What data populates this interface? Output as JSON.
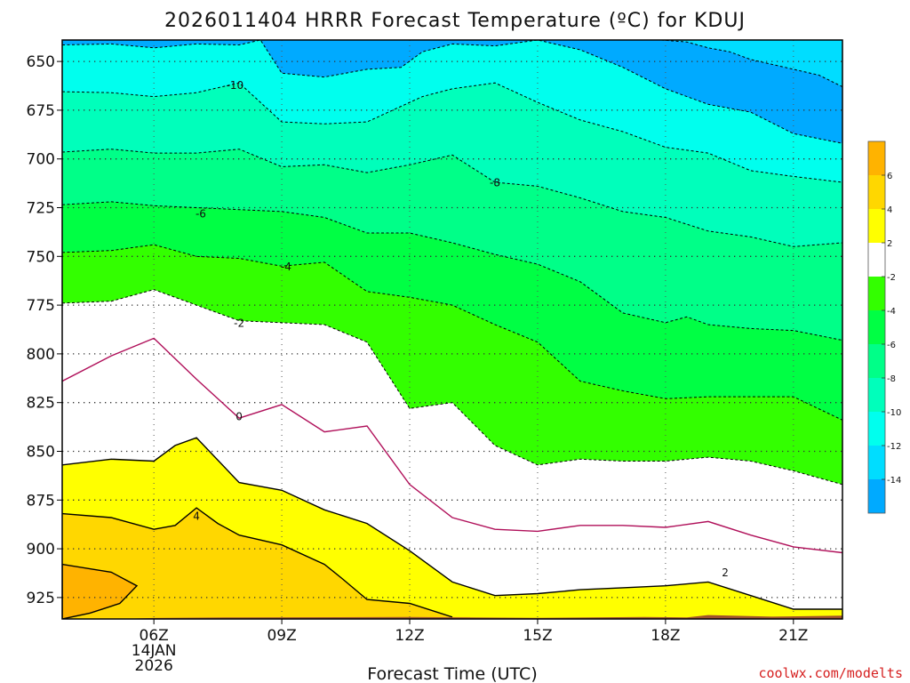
{
  "chart_data": {
    "type": "heatmap",
    "title": "2026011404 HRRR Forecast Temperature (ºC) for KDUJ",
    "xlabel": "Forecast Time (UTC)",
    "ylabel": "",
    "credit": "coolwx.com/modelts",
    "x_units": "forecast hour from 04Z",
    "xlim": [
      -0.15,
      18.15
    ],
    "x_ticks": [
      {
        "hour": 2,
        "label": "06Z",
        "sub1": "14JAN",
        "sub2": "2026"
      },
      {
        "hour": 5,
        "label": "09Z"
      },
      {
        "hour": 8,
        "label": "12Z"
      },
      {
        "hour": 11,
        "label": "15Z"
      },
      {
        "hour": 14,
        "label": "18Z"
      },
      {
        "hour": 17,
        "label": "21Z"
      }
    ],
    "y_units": "pressure (hPa)",
    "ylim": [
      936,
      639
    ],
    "y_ticks": [
      650,
      675,
      700,
      725,
      750,
      775,
      800,
      825,
      850,
      875,
      900,
      925
    ],
    "surface_pressure": [
      [
        -0.15,
        936.8
      ],
      [
        2,
        935.5
      ],
      [
        4,
        935.2
      ],
      [
        8,
        935
      ],
      [
        11,
        935.4
      ],
      [
        13.5,
        935
      ],
      [
        14.5,
        935.2
      ],
      [
        15,
        934
      ],
      [
        16.5,
        934.8
      ],
      [
        18.15,
        934.3
      ]
    ],
    "contour_interval": 2,
    "isotherms": [
      {
        "value": -14,
        "label": "",
        "dash": true,
        "points": [
          [
            13.9,
            639
          ],
          [
            14.5,
            640
          ],
          [
            15,
            643
          ],
          [
            15.5,
            645
          ],
          [
            16,
            649
          ],
          [
            16.8,
            653
          ],
          [
            17.6,
            657
          ],
          [
            18.15,
            663
          ]
        ]
      },
      {
        "value": -12,
        "label": "",
        "dash": true,
        "points": [
          [
            -0.15,
            641.5
          ],
          [
            1,
            641
          ],
          [
            2,
            643
          ],
          [
            3,
            641
          ],
          [
            4,
            641.5
          ],
          [
            4.5,
            639
          ],
          [
            5,
            656
          ],
          [
            6,
            658
          ],
          [
            7,
            654
          ],
          [
            7.8,
            653
          ],
          [
            8.3,
            645
          ],
          [
            9,
            641
          ],
          [
            10,
            642
          ],
          [
            11,
            639
          ],
          [
            12,
            644
          ],
          [
            13,
            653
          ],
          [
            14,
            664
          ],
          [
            15,
            672
          ],
          [
            16,
            676
          ],
          [
            17,
            687
          ],
          [
            18.15,
            692
          ]
        ]
      },
      {
        "value": -10,
        "label": "-10",
        "lx": 3.9,
        "ly": 662,
        "dash": true,
        "points": [
          [
            -0.15,
            665.5
          ],
          [
            1,
            666
          ],
          [
            2,
            668
          ],
          [
            3,
            666
          ],
          [
            4,
            661
          ],
          [
            5,
            681
          ],
          [
            6,
            682
          ],
          [
            7,
            681
          ],
          [
            7.8,
            673
          ],
          [
            8.3,
            668
          ],
          [
            9,
            664
          ],
          [
            10,
            661
          ],
          [
            11,
            671
          ],
          [
            12,
            680
          ],
          [
            13,
            686
          ],
          [
            14,
            694
          ],
          [
            15,
            697
          ],
          [
            16,
            706
          ],
          [
            17,
            709
          ],
          [
            18.15,
            712
          ]
        ]
      },
      {
        "value": -8,
        "label": "-8",
        "lx": 10,
        "ly": 712,
        "dash": true,
        "points": [
          [
            -0.15,
            696.5
          ],
          [
            1,
            695
          ],
          [
            2,
            697
          ],
          [
            3,
            697
          ],
          [
            4,
            695
          ],
          [
            5,
            704
          ],
          [
            6,
            703
          ],
          [
            7,
            707
          ],
          [
            8,
            703
          ],
          [
            9,
            698
          ],
          [
            10,
            712
          ],
          [
            11,
            714
          ],
          [
            12,
            720
          ],
          [
            13,
            727
          ],
          [
            14,
            730
          ],
          [
            15,
            737
          ],
          [
            16,
            740
          ],
          [
            17,
            745
          ],
          [
            18.15,
            743
          ]
        ]
      },
      {
        "value": -6,
        "label": "-6",
        "lx": 3.1,
        "ly": 728,
        "dash": true,
        "points": [
          [
            -0.15,
            723.5
          ],
          [
            1,
            722
          ],
          [
            2,
            724
          ],
          [
            3,
            725
          ],
          [
            4,
            726
          ],
          [
            5,
            727
          ],
          [
            6,
            730
          ],
          [
            7,
            738
          ],
          [
            8,
            738
          ],
          [
            9,
            743
          ],
          [
            10,
            749
          ],
          [
            11,
            754
          ],
          [
            12,
            763
          ],
          [
            13,
            779
          ],
          [
            14,
            784
          ],
          [
            14.5,
            781
          ],
          [
            15,
            785
          ],
          [
            16,
            787
          ],
          [
            17,
            788
          ],
          [
            18.15,
            793
          ]
        ]
      },
      {
        "value": -4,
        "label": "-4",
        "lx": 5.1,
        "ly": 755,
        "dash": true,
        "points": [
          [
            -0.15,
            748
          ],
          [
            1,
            747
          ],
          [
            2,
            744
          ],
          [
            3,
            750
          ],
          [
            4,
            751
          ],
          [
            5,
            755
          ],
          [
            6,
            753
          ],
          [
            7,
            768
          ],
          [
            8,
            771
          ],
          [
            9,
            775
          ],
          [
            10,
            785
          ],
          [
            11,
            794
          ],
          [
            12,
            814
          ],
          [
            13,
            819
          ],
          [
            14,
            823
          ],
          [
            15,
            822
          ],
          [
            16,
            822
          ],
          [
            17,
            822
          ],
          [
            18.15,
            834
          ]
        ]
      },
      {
        "value": -2,
        "label": "-2",
        "lx": 4,
        "ly": 784,
        "dash": true,
        "points": [
          [
            -0.15,
            774
          ],
          [
            1,
            773
          ],
          [
            2,
            767
          ],
          [
            3,
            775
          ],
          [
            4,
            783
          ],
          [
            5,
            784
          ],
          [
            6,
            785
          ],
          [
            7,
            794
          ],
          [
            8,
            828
          ],
          [
            9,
            825
          ],
          [
            10,
            847
          ],
          [
            11,
            857
          ],
          [
            12,
            854
          ],
          [
            13,
            855
          ],
          [
            14,
            855
          ],
          [
            15,
            853
          ],
          [
            16,
            855
          ],
          [
            17,
            860
          ],
          [
            18.15,
            867
          ]
        ]
      },
      {
        "value": 0,
        "label": "0",
        "lx": 4,
        "ly": 832,
        "dash": false,
        "color": "#b0105a",
        "points": [
          [
            -0.15,
            814
          ],
          [
            1,
            801
          ],
          [
            2,
            792
          ],
          [
            3,
            813
          ],
          [
            4,
            833
          ],
          [
            5,
            826
          ],
          [
            6,
            840
          ],
          [
            7,
            837
          ],
          [
            8,
            867
          ],
          [
            9,
            884
          ],
          [
            10,
            890
          ],
          [
            11,
            891
          ],
          [
            12,
            888
          ],
          [
            13,
            888
          ],
          [
            14,
            889
          ],
          [
            15,
            886
          ],
          [
            16,
            893
          ],
          [
            17,
            899
          ],
          [
            18.15,
            902
          ]
        ]
      },
      {
        "value": 2,
        "label": "2",
        "lx": 15.4,
        "ly": 912,
        "dash": false,
        "points": [
          [
            -0.15,
            857
          ],
          [
            1,
            854
          ],
          [
            2,
            855
          ],
          [
            2.5,
            847
          ],
          [
            3,
            843
          ],
          [
            4,
            866
          ],
          [
            5,
            870
          ],
          [
            6,
            880
          ],
          [
            7,
            887
          ],
          [
            8,
            901
          ],
          [
            9,
            917
          ],
          [
            10,
            924
          ],
          [
            11,
            923
          ],
          [
            12,
            921
          ],
          [
            13,
            920
          ],
          [
            14,
            919
          ],
          [
            15,
            917
          ],
          [
            16,
            924
          ],
          [
            17,
            931
          ],
          [
            18.15,
            931
          ]
        ]
      },
      {
        "value": 4,
        "label": "4",
        "lx": 3,
        "ly": 883,
        "dash": false,
        "points": [
          [
            -0.15,
            882
          ],
          [
            1,
            884
          ],
          [
            2,
            890
          ],
          [
            2.5,
            888
          ],
          [
            3,
            879
          ],
          [
            3.5,
            887
          ],
          [
            4,
            893
          ],
          [
            5,
            898
          ],
          [
            6,
            908
          ],
          [
            6.4,
            915
          ],
          [
            7,
            926
          ],
          [
            8,
            928
          ],
          [
            9,
            935
          ]
        ]
      },
      {
        "value": 6,
        "label": "",
        "dash": false,
        "points": [
          [
            -0.15,
            908
          ],
          [
            1,
            912
          ],
          [
            1.6,
            919
          ],
          [
            1.2,
            928
          ],
          [
            0.5,
            933
          ],
          [
            -0.15,
            936
          ]
        ]
      }
    ],
    "colorbar": {
      "labels": [
        "6",
        "4",
        "2",
        "-2",
        "-4",
        "-6",
        "-8",
        "-10",
        "-12",
        "-14"
      ],
      "colors": [
        "#ffb300",
        "#ffd700",
        "#ffff00",
        "#ffffff",
        "#33ff00",
        "#00ff44",
        "#00ff88",
        "#00ffbb",
        "#00ffee",
        "#00ddff",
        "#00aaff"
      ],
      "bounds": [
        8,
        6,
        4,
        2,
        -2,
        -4,
        -6,
        -8,
        -10,
        -12,
        -14,
        -16
      ]
    },
    "grid": true
  }
}
